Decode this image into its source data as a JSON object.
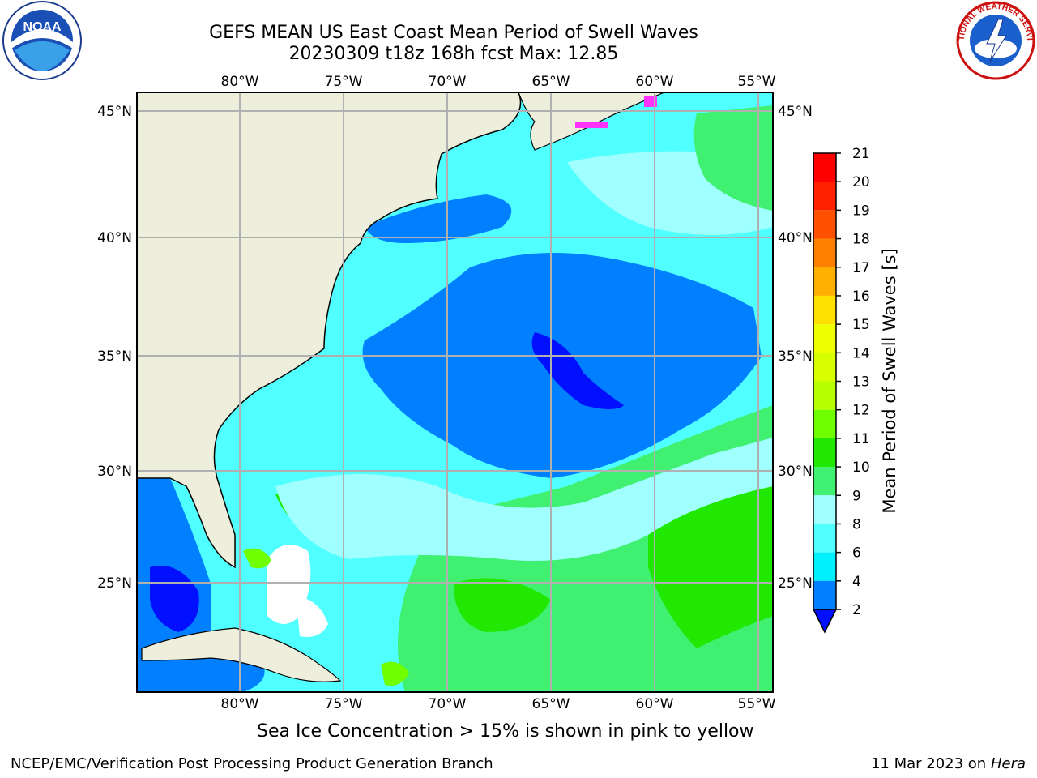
{
  "header": {
    "title_line1": "GEFS MEAN US East Coast Mean Period of Swell Waves",
    "title_line2": "20230309 t18z 168h fcst   Max: 12.85"
  },
  "logos": {
    "left": "noaa-logo",
    "right": "national-weather-service-logo",
    "left_text": "NOAA",
    "right_text": "NATIONAL WEATHER SERVICE"
  },
  "map": {
    "lon_labels": [
      "80°W",
      "75°W",
      "70°W",
      "65°W",
      "60°W",
      "55°W"
    ],
    "lat_labels": [
      "45°N",
      "40°N",
      "35°N",
      "30°N",
      "25°N"
    ],
    "land_color": "#eeeedc",
    "grid_color": "#b0b0b0"
  },
  "colorbar": {
    "title": "Mean Period of Swell Waves [s]",
    "ticks": [
      "21",
      "20",
      "19",
      "18",
      "17",
      "16",
      "15",
      "14",
      "13",
      "12",
      "11",
      "10",
      "9",
      "8",
      "6",
      "4",
      "2"
    ],
    "levels": [
      {
        "from": 20,
        "to": 21,
        "color": "#ff0000"
      },
      {
        "from": 19,
        "to": 20,
        "color": "#ff2000"
      },
      {
        "from": 18,
        "to": 19,
        "color": "#ff5000"
      },
      {
        "from": 17,
        "to": 18,
        "color": "#ff8000"
      },
      {
        "from": 16,
        "to": 17,
        "color": "#ffb000"
      },
      {
        "from": 15,
        "to": 16,
        "color": "#ffe000"
      },
      {
        "from": 14,
        "to": 15,
        "color": "#f0ff00"
      },
      {
        "from": 13,
        "to": 14,
        "color": "#d8ff00"
      },
      {
        "from": 12,
        "to": 13,
        "color": "#b8ff00"
      },
      {
        "from": 11,
        "to": 12,
        "color": "#70ff00"
      },
      {
        "from": 10,
        "to": 11,
        "color": "#20e800"
      },
      {
        "from": 9,
        "to": 10,
        "color": "#40f070"
      },
      {
        "from": 8,
        "to": 9,
        "color": "#a0ffff"
      },
      {
        "from": 6,
        "to": 8,
        "color": "#50ffff"
      },
      {
        "from": 4,
        "to": 6,
        "color": "#00f0ff"
      },
      {
        "from": 2,
        "to": 4,
        "color": "#0080ff"
      }
    ],
    "under_color": "#0010ff"
  },
  "footer": {
    "sea_ice_note": "Sea Ice Concentration > 15% is shown in pink to yellow",
    "credit": "NCEP/EMC/Verification Post Processing Product Generation Branch",
    "date": "11 Mar 2023 on",
    "host": "Hera"
  }
}
